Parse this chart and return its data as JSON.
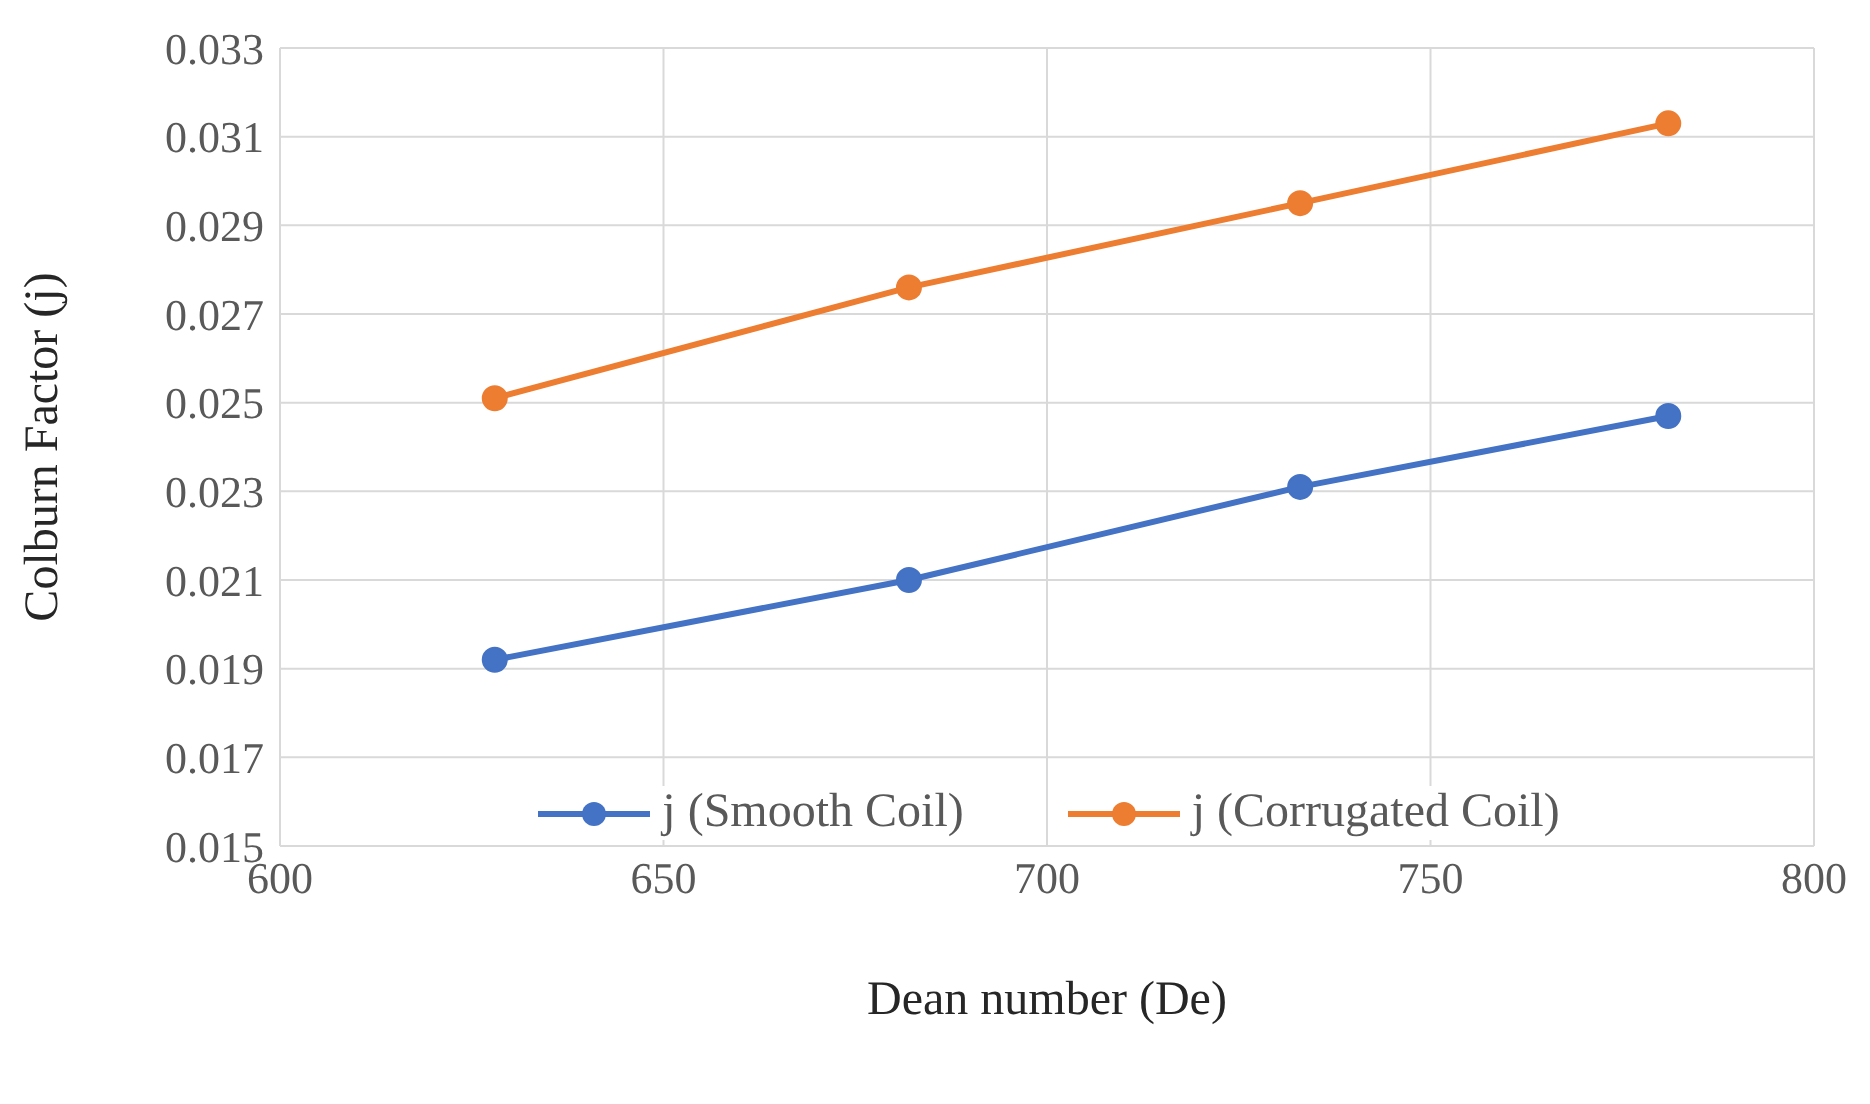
{
  "chart_data": {
    "type": "line",
    "xlabel": "Dean number (De)",
    "ylabel": "Colburn Factor (j)",
    "x": [
      628,
      682,
      733,
      781
    ],
    "series": [
      {
        "name": "j (Smooth Coil)",
        "color": "#4472c4",
        "values": [
          0.0192,
          0.021,
          0.0231,
          0.0247
        ]
      },
      {
        "name": "j (Corrugated Coil)",
        "color": "#ed7d31",
        "values": [
          0.0251,
          0.0276,
          0.0295,
          0.0313
        ]
      }
    ],
    "xlim": [
      600,
      800
    ],
    "xticks": [
      600,
      650,
      700,
      750,
      800
    ],
    "ylim": [
      0.015,
      0.033
    ],
    "yticks": [
      0.015,
      0.017,
      0.019,
      0.021,
      0.023,
      0.025,
      0.027,
      0.029,
      0.031,
      0.033
    ],
    "grid": true,
    "legend": "bottom",
    "marker": "circle",
    "line_style": "solid"
  }
}
